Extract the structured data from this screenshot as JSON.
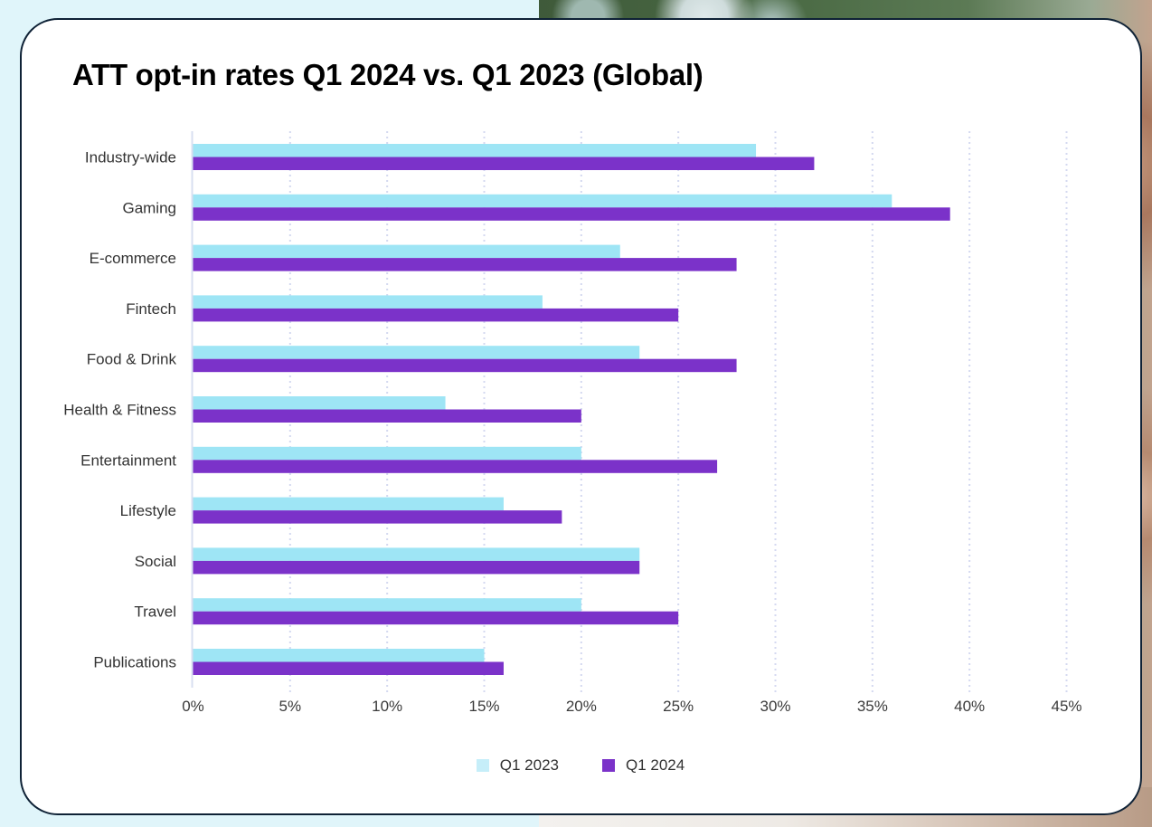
{
  "page": {
    "background_color": "#e0f5fa",
    "card_border_color": "#0f2236"
  },
  "chart_data": {
    "type": "bar",
    "orientation": "horizontal",
    "title": "ATT opt-in rates Q1 2024 vs. Q1 2023 (Global)",
    "xlabel": "",
    "ylabel": "",
    "categories": [
      "Industry-wide",
      "Gaming",
      "E-commerce",
      "Fintech",
      "Food & Drink",
      "Health & Fitness",
      "Entertainment",
      "Lifestyle",
      "Social",
      "Travel",
      "Publications"
    ],
    "series": [
      {
        "name": "Q1 2023",
        "color": "#9ee5f5",
        "values": [
          29,
          36,
          22,
          18,
          23,
          13,
          20,
          16,
          23,
          20,
          15
        ]
      },
      {
        "name": "Q1 2024",
        "color": "#7b32c9",
        "values": [
          32,
          39,
          28,
          25,
          28,
          20,
          27,
          19,
          23,
          25,
          16
        ]
      }
    ],
    "xlim": [
      0,
      45
    ],
    "x_ticks": [
      0,
      5,
      10,
      15,
      20,
      25,
      30,
      35,
      40,
      45
    ],
    "x_tick_labels": [
      "0%",
      "5%",
      "10%",
      "15%",
      "20%",
      "25%",
      "30%",
      "35%",
      "40%",
      "45%"
    ],
    "value_unit": "%",
    "grid": "vertical dotted",
    "legend_position": "bottom-center",
    "legend": [
      {
        "label": "Q1 2023",
        "color": "#c6eef9"
      },
      {
        "label": "Q1 2024",
        "color": "#7b32c9"
      }
    ]
  }
}
